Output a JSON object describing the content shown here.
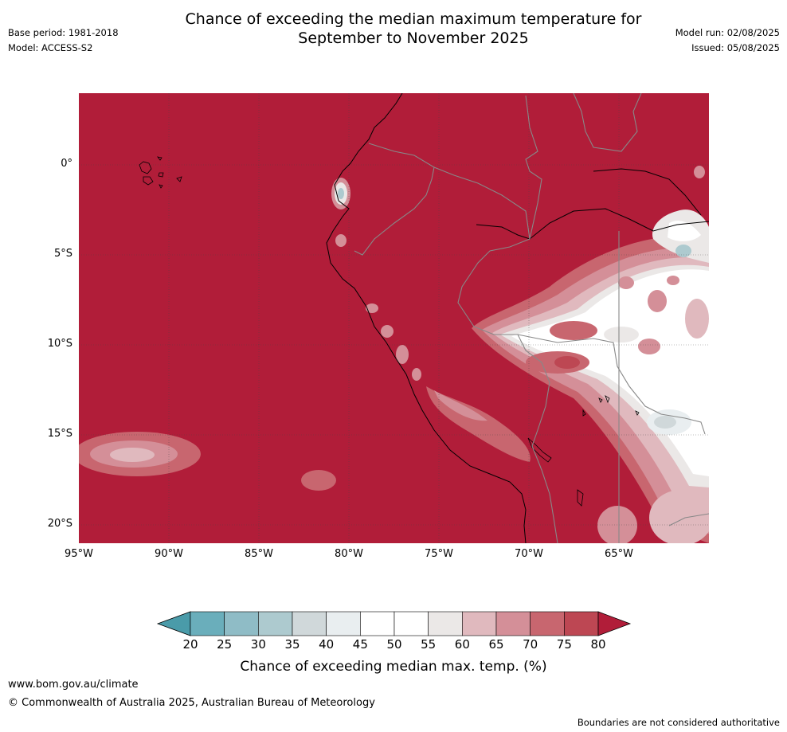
{
  "header": {
    "title_line1": "Chance of exceeding the median maximum temperature for",
    "title_line2": "September to November 2025",
    "base_period": "Base period: 1981-2018",
    "model": "Model: ACCESS-S2",
    "model_run": "Model run: 02/08/2025",
    "issued": "Issued: 05/08/2025"
  },
  "map": {
    "lat_labels": [
      "0°",
      "5°S",
      "10°S",
      "15°S",
      "20°S"
    ],
    "lon_labels": [
      "95°W",
      "90°W",
      "85°W",
      "80°W",
      "75°W",
      "70°W",
      "65°W"
    ],
    "background_color": "#b11d39"
  },
  "legend": {
    "title": "Chance of exceeding median max. temp. (%)",
    "ticks": [
      "20",
      "25",
      "30",
      "35",
      "40",
      "45",
      "50",
      "55",
      "60",
      "65",
      "70",
      "75",
      "80"
    ],
    "colors": [
      "#4a9ba9",
      "#6aaebb",
      "#8fbcc6",
      "#adcacf",
      "#d0d8da",
      "#e9eef0",
      "#ffffff",
      "#ffffff",
      "#ebe8e7",
      "#e0b9be",
      "#d48f98",
      "#c8666f",
      "#bd4753",
      "#b11d39"
    ]
  },
  "footer": {
    "url": "www.bom.gov.au/climate",
    "copyright": "© Commonwealth of Australia 2025, Australian Bureau of Meteorology",
    "disclaimer": "Boundaries are not considered authoritative"
  }
}
